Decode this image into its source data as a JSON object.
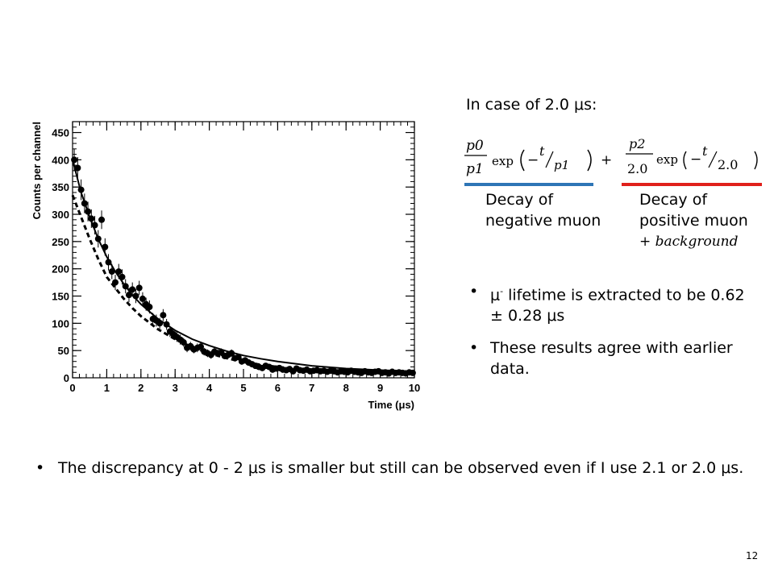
{
  "slide": {
    "heading": "In case of 2.0 μs:",
    "formula": {
      "n1": "p0",
      "d1": "p1",
      "exp1": "exp",
      "t1": "t",
      "tau1": "p1",
      "plus": "+",
      "n2": "p2",
      "d2": "2.0",
      "exp2": "exp",
      "t2": "t",
      "tau2": "2.0"
    },
    "captions": {
      "negative_line1": "Decay of",
      "negative_line2": "negative muon",
      "positive_line1": "Decay of",
      "positive_line2": "positive muon",
      "background": "+ background"
    },
    "underline_colors": {
      "negative": "#2e75b6",
      "positive": "#e0201b"
    },
    "bullets": [
      {
        "pre": "μ",
        "sup": "-",
        "post": " lifetime is extracted to be 0.62 ± 0.28 μs"
      },
      {
        "text": "These results agree with earlier data."
      }
    ],
    "bottom_bullet": "The discrepancy at 0 - 2 μs is smaller but still can be observed even if I use 2.1 or 2.0 μs.",
    "bullet_symbol": "•",
    "page_number": "12"
  },
  "chart_data": {
    "type": "scatter",
    "xlabel": "Time  (μs)",
    "ylabel": "Counts per channel",
    "xlim": [
      0,
      10
    ],
    "ylim": [
      0,
      470
    ],
    "xticks": [
      0,
      1,
      2,
      3,
      4,
      5,
      6,
      7,
      8,
      9,
      10
    ],
    "yticks": [
      0,
      50,
      100,
      150,
      200,
      250,
      300,
      350,
      400,
      450
    ],
    "grid": false,
    "series": [
      {
        "style": "points-with-errors",
        "x": [
          0.05,
          0.15,
          0.25,
          0.35,
          0.45,
          0.55,
          0.65,
          0.75,
          0.85,
          0.95,
          1.05,
          1.15,
          1.25,
          1.35,
          1.45,
          1.55,
          1.65,
          1.75,
          1.85,
          1.95,
          2.05,
          2.15,
          2.25,
          2.35,
          2.45,
          2.55,
          2.65,
          2.75,
          2.85,
          2.95,
          3.05,
          3.15,
          3.25,
          3.35,
          3.45,
          3.55,
          3.65,
          3.75,
          3.85,
          3.95,
          4.05,
          4.15,
          4.25,
          4.35,
          4.45,
          4.55,
          4.65,
          4.75,
          4.85,
          4.95,
          5.05,
          5.15,
          5.25,
          5.35,
          5.45,
          5.55,
          5.65,
          5.75,
          5.85,
          5.95,
          6.05,
          6.15,
          6.25,
          6.35,
          6.45,
          6.55,
          6.65,
          6.75,
          6.85,
          6.95,
          7.05,
          7.15,
          7.25,
          7.35,
          7.45,
          7.55,
          7.65,
          7.75,
          7.85,
          7.95,
          8.05,
          8.15,
          8.25,
          8.35,
          8.45,
          8.55,
          8.65,
          8.75,
          8.85,
          8.95,
          9.05,
          9.15,
          9.25,
          9.35,
          9.45,
          9.55,
          9.65,
          9.75,
          9.85,
          9.95
        ],
        "y": [
          400,
          385,
          345,
          320,
          305,
          292,
          280,
          255,
          290,
          240,
          212,
          195,
          175,
          195,
          185,
          168,
          152,
          162,
          150,
          165,
          145,
          135,
          130,
          108,
          105,
          100,
          115,
          98,
          85,
          80,
          75,
          70,
          65,
          55,
          58,
          52,
          55,
          57,
          48,
          45,
          42,
          48,
          45,
          47,
          40,
          42,
          45,
          36,
          38,
          30,
          32,
          28,
          25,
          22,
          20,
          18,
          22,
          20,
          15,
          17,
          18,
          15,
          14,
          16,
          12,
          17,
          14,
          13,
          15,
          12,
          13,
          14,
          12,
          13,
          11,
          13,
          12,
          10,
          12,
          11,
          10,
          13,
          11,
          10,
          9,
          12,
          10,
          9,
          11,
          12,
          9,
          10,
          8,
          11,
          9,
          10,
          9,
          8,
          10,
          9
        ],
        "err": [
          20,
          20,
          19,
          18,
          18,
          17,
          17,
          16,
          17,
          16,
          15,
          14,
          14,
          14,
          14,
          13,
          13,
          13,
          13,
          13,
          12,
          12,
          12,
          11,
          11,
          10,
          11,
          10,
          10,
          9,
          9,
          9,
          8,
          8,
          8,
          7,
          8,
          8,
          7,
          7,
          7,
          7,
          7,
          7,
          6,
          7,
          7,
          6,
          6,
          6,
          6,
          6,
          5,
          5,
          5,
          5,
          5,
          5,
          4,
          4,
          4,
          4,
          4,
          4,
          4,
          4,
          4,
          4,
          4,
          4,
          4,
          4,
          4,
          4,
          4,
          4,
          4,
          4,
          4,
          4,
          4,
          4,
          4,
          4,
          3,
          4,
          3,
          3,
          4,
          4,
          3,
          3,
          3,
          3,
          3,
          3,
          3,
          3,
          3,
          3
        ]
      },
      {
        "style": "solid-fit",
        "x": [
          0,
          0.25,
          0.5,
          0.75,
          1,
          1.25,
          1.5,
          1.75,
          2,
          2.5,
          3,
          3.5,
          4,
          4.5,
          5,
          5.5,
          6,
          7,
          8,
          9,
          10
        ],
        "y": [
          400,
          340,
          295,
          255,
          222,
          195,
          172,
          152,
          135,
          108,
          87,
          71,
          59,
          49,
          41,
          35,
          30,
          22,
          17,
          14,
          12
        ]
      },
      {
        "style": "dashed-component",
        "x": [
          0,
          0.25,
          0.5,
          0.75,
          1,
          1.25,
          1.5,
          1.75,
          2,
          2.5,
          3,
          3.5,
          4,
          4.5,
          5,
          5.5,
          6,
          7,
          8,
          9,
          10
        ],
        "y": [
          335,
          295,
          255,
          218,
          185,
          165,
          145,
          128,
          113,
          89,
          71,
          56,
          45,
          36,
          29,
          24,
          20,
          14,
          11,
          9,
          8
        ]
      }
    ]
  }
}
